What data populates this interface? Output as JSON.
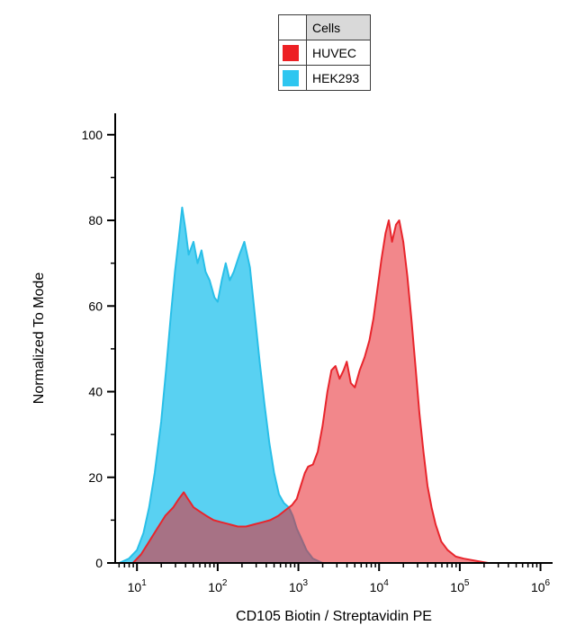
{
  "legend": {
    "title": "Cells",
    "items": [
      {
        "label": "HUVEC",
        "color": "#ed2024"
      },
      {
        "label": "HEK293",
        "color": "#2ec6f0"
      }
    ]
  },
  "axes": {
    "y_label": "Normalized To Mode",
    "x_label": "CD105 Biotin / Streptavidin PE",
    "y_ticks": [
      0,
      20,
      40,
      60,
      80,
      100
    ],
    "y_minor_ticks": [
      10,
      30,
      50,
      70,
      90
    ],
    "x_tick_base": "10",
    "x_tick_exponents": [
      1,
      2,
      3,
      4,
      5,
      6
    ],
    "axis_color": "#000000"
  },
  "chart_data": {
    "type": "area",
    "title": "",
    "xlabel": "CD105 Biotin / Streptavidin PE",
    "ylabel": "Normalized To Mode",
    "x_scale": "log10",
    "x_range_log10": [
      0.73,
      6.15
    ],
    "y_range": [
      0,
      105
    ],
    "grid": false,
    "legend_position": "top-center",
    "series": [
      {
        "name": "HEK293",
        "stroke": "#29bfe8",
        "fill": "rgba(47,197,239,0.8)",
        "points": [
          [
            0.78,
            0
          ],
          [
            0.9,
            1
          ],
          [
            1.0,
            3
          ],
          [
            1.08,
            7
          ],
          [
            1.15,
            13
          ],
          [
            1.22,
            21
          ],
          [
            1.3,
            33
          ],
          [
            1.36,
            45
          ],
          [
            1.42,
            58
          ],
          [
            1.47,
            68
          ],
          [
            1.52,
            76
          ],
          [
            1.56,
            83
          ],
          [
            1.6,
            78
          ],
          [
            1.64,
            72
          ],
          [
            1.7,
            75
          ],
          [
            1.75,
            70
          ],
          [
            1.8,
            73
          ],
          [
            1.85,
            68
          ],
          [
            1.9,
            66
          ],
          [
            1.96,
            62
          ],
          [
            2.0,
            61
          ],
          [
            2.05,
            66
          ],
          [
            2.1,
            70
          ],
          [
            2.15,
            66
          ],
          [
            2.2,
            68
          ],
          [
            2.27,
            72
          ],
          [
            2.33,
            75
          ],
          [
            2.4,
            69
          ],
          [
            2.46,
            58
          ],
          [
            2.52,
            47
          ],
          [
            2.58,
            37
          ],
          [
            2.64,
            28
          ],
          [
            2.7,
            21
          ],
          [
            2.76,
            16
          ],
          [
            2.82,
            14
          ],
          [
            2.88,
            13
          ],
          [
            2.93,
            11
          ],
          [
            2.98,
            8
          ],
          [
            3.03,
            6
          ],
          [
            3.1,
            3
          ],
          [
            3.18,
            1
          ],
          [
            3.3,
            0
          ]
        ]
      },
      {
        "name": "HUVEC",
        "stroke": "#e8252c",
        "fill": "rgba(232,37,44,0.55)",
        "points": [
          [
            0.95,
            0
          ],
          [
            1.05,
            2
          ],
          [
            1.15,
            5
          ],
          [
            1.25,
            8
          ],
          [
            1.35,
            11
          ],
          [
            1.45,
            13
          ],
          [
            1.52,
            15
          ],
          [
            1.58,
            16.5
          ],
          [
            1.63,
            15
          ],
          [
            1.7,
            13
          ],
          [
            1.78,
            12
          ],
          [
            1.86,
            11
          ],
          [
            1.95,
            10
          ],
          [
            2.05,
            9.5
          ],
          [
            2.15,
            9
          ],
          [
            2.25,
            8.5
          ],
          [
            2.35,
            8.5
          ],
          [
            2.45,
            9
          ],
          [
            2.55,
            9.5
          ],
          [
            2.65,
            10
          ],
          [
            2.75,
            11
          ],
          [
            2.85,
            12.5
          ],
          [
            2.92,
            13.5
          ],
          [
            2.98,
            15
          ],
          [
            3.03,
            18
          ],
          [
            3.08,
            21
          ],
          [
            3.12,
            22.5
          ],
          [
            3.18,
            23
          ],
          [
            3.24,
            26
          ],
          [
            3.3,
            32
          ],
          [
            3.36,
            40
          ],
          [
            3.41,
            45
          ],
          [
            3.46,
            46
          ],
          [
            3.51,
            43
          ],
          [
            3.56,
            45
          ],
          [
            3.6,
            47
          ],
          [
            3.65,
            42
          ],
          [
            3.7,
            41
          ],
          [
            3.76,
            45
          ],
          [
            3.82,
            48
          ],
          [
            3.88,
            52
          ],
          [
            3.93,
            57
          ],
          [
            3.98,
            64
          ],
          [
            4.03,
            71
          ],
          [
            4.08,
            77
          ],
          [
            4.12,
            80
          ],
          [
            4.16,
            75
          ],
          [
            4.21,
            79
          ],
          [
            4.25,
            80
          ],
          [
            4.3,
            75
          ],
          [
            4.35,
            67
          ],
          [
            4.4,
            57
          ],
          [
            4.45,
            46
          ],
          [
            4.5,
            35
          ],
          [
            4.55,
            26
          ],
          [
            4.6,
            18
          ],
          [
            4.65,
            13
          ],
          [
            4.7,
            9
          ],
          [
            4.77,
            5
          ],
          [
            4.85,
            3
          ],
          [
            4.95,
            1.5
          ],
          [
            5.05,
            1
          ],
          [
            5.2,
            0.5
          ],
          [
            5.35,
            0
          ]
        ]
      }
    ]
  }
}
